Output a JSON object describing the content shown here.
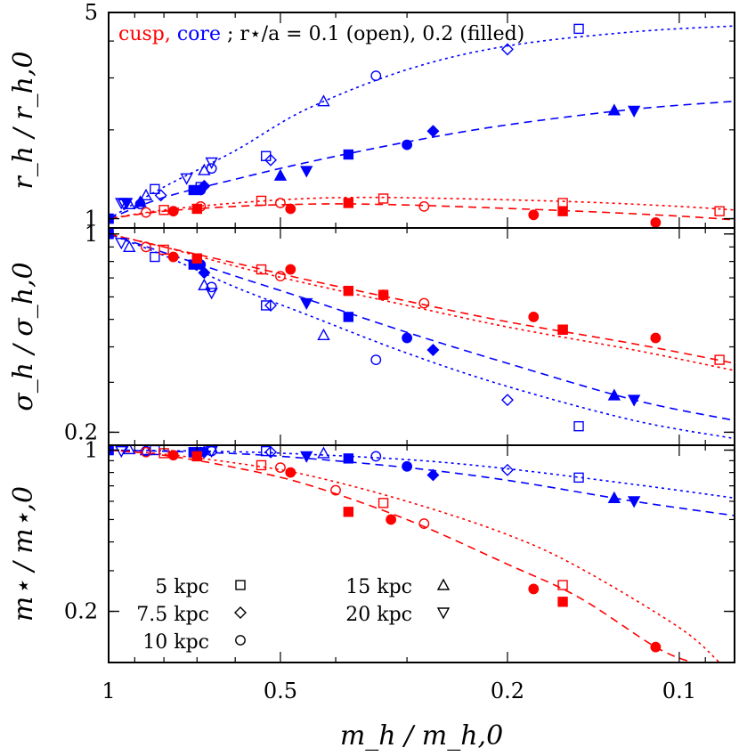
{
  "chart_data": [
    {
      "type": "scatter",
      "panel": "r",
      "ylabel": "r_h / r_h,0",
      "yscale": "log",
      "ylim": [
        0.93,
        5
      ],
      "yticks": [
        {
          "v": 1,
          "label": "1"
        },
        {
          "v": 5,
          "label": "5"
        }
      ],
      "legend_text": {
        "cusp": "cusp,",
        "core": "core",
        "sep": ";",
        "ratio": "r⋆/a = 0.1 (open), 0.2 (filled)"
      },
      "curves": [
        {
          "profile": "core",
          "ratio": "0.1",
          "x": [
            1,
            0.8,
            0.6,
            0.45,
            0.3,
            0.2,
            0.12,
            0.08
          ],
          "y": [
            1,
            1.28,
            1.7,
            2.35,
            3.2,
            3.85,
            4.3,
            4.5
          ]
        },
        {
          "profile": "core",
          "ratio": "0.2",
          "x": [
            1,
            0.8,
            0.6,
            0.45,
            0.3,
            0.2,
            0.12,
            0.08
          ],
          "y": [
            1,
            1.18,
            1.36,
            1.55,
            1.82,
            2.08,
            2.35,
            2.5
          ]
        },
        {
          "profile": "cusp",
          "ratio": "0.1",
          "x": [
            1,
            0.8,
            0.6,
            0.45,
            0.35,
            0.25,
            0.15,
            0.1,
            0.08
          ],
          "y": [
            1,
            1.07,
            1.13,
            1.17,
            1.18,
            1.17,
            1.14,
            1.1,
            1.07
          ]
        },
        {
          "profile": "cusp",
          "ratio": "0.2",
          "x": [
            1,
            0.8,
            0.6,
            0.45,
            0.35,
            0.25,
            0.15,
            0.1,
            0.08
          ],
          "y": [
            1,
            1.06,
            1.1,
            1.12,
            1.12,
            1.1,
            1.06,
            1.02,
            0.99
          ]
        }
      ],
      "points": [
        {
          "profile": "core",
          "ratio": "0.1",
          "radius": "5 kpc",
          "x": [
            1,
            0.83,
            0.69,
            0.53,
            0.15
          ],
          "y": [
            1,
            1.26,
            1.28,
            1.63,
            4.4
          ]
        },
        {
          "profile": "core",
          "ratio": "0.1",
          "radius": "7.5 kpc",
          "x": [
            0.81,
            0.52,
            0.2
          ],
          "y": [
            1.2,
            1.58,
            3.75
          ]
        },
        {
          "profile": "core",
          "ratio": "0.1",
          "radius": "10 kpc",
          "x": [
            0.88,
            0.66,
            0.34
          ],
          "y": [
            1.12,
            1.48,
            3.05
          ]
        },
        {
          "profile": "core",
          "ratio": "0.1",
          "radius": "15 kpc",
          "x": [
            0.92,
            0.86,
            0.68,
            0.42
          ],
          "y": [
            1.12,
            1.2,
            1.46,
            2.5
          ]
        },
        {
          "profile": "core",
          "ratio": "0.1",
          "radius": "20 kpc",
          "x": [
            0.95,
            0.94,
            0.73,
            0.66
          ],
          "y": [
            1.13,
            1.12,
            1.37,
            1.55
          ]
        },
        {
          "profile": "core",
          "ratio": "0.2",
          "radius": "5 kpc",
          "x": [
            1,
            0.71,
            0.38
          ],
          "y": [
            1,
            1.25,
            1.65
          ]
        },
        {
          "profile": "core",
          "ratio": "0.2",
          "radius": "7.5 kpc",
          "x": [
            0.68,
            0.27
          ],
          "y": [
            1.29,
            1.98
          ]
        },
        {
          "profile": "core",
          "ratio": "0.2",
          "radius": "10 kpc",
          "x": [
            0.69,
            0.3
          ],
          "y": [
            1.25,
            1.78
          ]
        },
        {
          "profile": "core",
          "ratio": "0.2",
          "radius": "15 kpc",
          "x": [
            0.88,
            0.5,
            0.13
          ],
          "y": [
            1.14,
            1.4,
            2.33
          ]
        },
        {
          "profile": "core",
          "ratio": "0.2",
          "radius": "20 kpc",
          "x": [
            0.93,
            0.45,
            0.12
          ],
          "y": [
            1.13,
            1.45,
            2.32
          ]
        },
        {
          "profile": "cusp",
          "ratio": "0.1",
          "radius": "5 kpc",
          "x": [
            0.8,
            0.54,
            0.33,
            0.16,
            0.085
          ],
          "y": [
            1.07,
            1.15,
            1.17,
            1.13,
            1.06
          ]
        },
        {
          "profile": "cusp",
          "ratio": "0.1",
          "radius": "10 kpc",
          "x": [
            0.86,
            0.69,
            0.5,
            0.28
          ],
          "y": [
            1.05,
            1.1,
            1.13,
            1.1
          ]
        },
        {
          "profile": "cusp",
          "ratio": "0.2",
          "radius": "5 kpc",
          "x": [
            0.7,
            0.38,
            0.16
          ],
          "y": [
            1.08,
            1.13,
            1.06
          ]
        },
        {
          "profile": "cusp",
          "ratio": "0.2",
          "radius": "10 kpc",
          "x": [
            0.77,
            0.48,
            0.18,
            0.11
          ],
          "y": [
            1.06,
            1.08,
            1.03,
            0.97
          ]
        }
      ]
    },
    {
      "type": "scatter",
      "panel": "sigma",
      "ylabel": "σ_h / σ_h,0",
      "yscale": "log",
      "ylim": [
        0.18,
        1.05
      ],
      "yticks": [
        {
          "v": 1,
          "label": "1"
        },
        {
          "v": 0.2,
          "label": "0.2"
        }
      ],
      "curves": [
        {
          "profile": "core",
          "ratio": "0.1",
          "x": [
            1,
            0.8,
            0.6,
            0.45,
            0.3,
            0.2,
            0.12,
            0.08
          ],
          "y": [
            1,
            0.84,
            0.65,
            0.52,
            0.38,
            0.29,
            0.22,
            0.19
          ]
        },
        {
          "profile": "core",
          "ratio": "0.2",
          "x": [
            1,
            0.8,
            0.6,
            0.45,
            0.3,
            0.2,
            0.12,
            0.08
          ],
          "y": [
            1,
            0.86,
            0.71,
            0.59,
            0.45,
            0.35,
            0.26,
            0.22
          ]
        },
        {
          "profile": "cusp",
          "ratio": "0.1",
          "x": [
            1,
            0.8,
            0.6,
            0.45,
            0.3,
            0.2,
            0.12,
            0.08
          ],
          "y": [
            1,
            0.9,
            0.77,
            0.67,
            0.56,
            0.47,
            0.39,
            0.33
          ]
        },
        {
          "profile": "cusp",
          "ratio": "0.2",
          "x": [
            1,
            0.8,
            0.6,
            0.45,
            0.3,
            0.2,
            0.12,
            0.08
          ],
          "y": [
            1,
            0.9,
            0.79,
            0.69,
            0.58,
            0.49,
            0.41,
            0.35
          ]
        }
      ],
      "points": [
        {
          "profile": "core",
          "ratio": "0.1",
          "radius": "5 kpc",
          "x": [
            1,
            0.83,
            0.53,
            0.15
          ],
          "y": [
            1,
            0.83,
            0.56,
            0.21
          ]
        },
        {
          "profile": "core",
          "ratio": "0.1",
          "radius": "7.5 kpc",
          "x": [
            0.52,
            0.2
          ],
          "y": [
            0.56,
            0.26
          ]
        },
        {
          "profile": "core",
          "ratio": "0.1",
          "radius": "10 kpc",
          "x": [
            0.66,
            0.34
          ],
          "y": [
            0.65,
            0.36
          ]
        },
        {
          "profile": "core",
          "ratio": "0.1",
          "radius": "15 kpc",
          "x": [
            0.92,
            0.68,
            0.42
          ],
          "y": [
            0.9,
            0.66,
            0.44
          ]
        },
        {
          "profile": "core",
          "ratio": "0.1",
          "radius": "20 kpc",
          "x": [
            0.95,
            0.66
          ],
          "y": [
            0.93,
            0.62
          ]
        },
        {
          "profile": "core",
          "ratio": "0.2",
          "radius": "5 kpc",
          "x": [
            1,
            0.71,
            0.38
          ],
          "y": [
            1,
            0.78,
            0.51
          ]
        },
        {
          "profile": "core",
          "ratio": "0.2",
          "radius": "7.5 kpc",
          "x": [
            0.68,
            0.27
          ],
          "y": [
            0.73,
            0.39
          ]
        },
        {
          "profile": "core",
          "ratio": "0.2",
          "radius": "10 kpc",
          "x": [
            0.69,
            0.3
          ],
          "y": [
            0.78,
            0.43
          ]
        },
        {
          "profile": "core",
          "ratio": "0.2",
          "radius": "15 kpc",
          "x": [
            0.13
          ],
          "y": [
            0.27
          ]
        },
        {
          "profile": "core",
          "ratio": "0.2",
          "radius": "20 kpc",
          "x": [
            0.45,
            0.12
          ],
          "y": [
            0.57,
            0.26
          ]
        },
        {
          "profile": "cusp",
          "ratio": "0.1",
          "radius": "5 kpc",
          "x": [
            0.8,
            0.54,
            0.33,
            0.16,
            0.085
          ],
          "y": [
            0.88,
            0.75,
            0.61,
            0.46,
            0.36
          ]
        },
        {
          "profile": "cusp",
          "ratio": "0.1",
          "radius": "10 kpc",
          "x": [
            0.86,
            0.5,
            0.28
          ],
          "y": [
            0.9,
            0.71,
            0.57
          ]
        },
        {
          "profile": "cusp",
          "ratio": "0.2",
          "radius": "5 kpc",
          "x": [
            0.7,
            0.38,
            0.16
          ],
          "y": [
            0.82,
            0.63,
            0.46
          ]
        },
        {
          "profile": "cusp",
          "ratio": "0.2",
          "radius": "10 kpc",
          "x": [
            0.77,
            0.48,
            0.33,
            0.18,
            0.11
          ],
          "y": [
            0.83,
            0.75,
            0.61,
            0.51,
            0.43
          ]
        }
      ]
    },
    {
      "type": "scatter",
      "panel": "mstar",
      "ylabel": "m⋆ / m⋆,0",
      "xlabel": "m_h / m_h,0",
      "yscale": "log",
      "ylim": [
        0.12,
        1.05
      ],
      "yticks": [
        {
          "v": 1,
          "label": "1"
        },
        {
          "v": 0.2,
          "label": "0.2"
        }
      ],
      "xscale": "log",
      "xreversed": true,
      "xlim": [
        1.0,
        0.08
      ],
      "xticks": [
        {
          "v": 1,
          "label": "1"
        },
        {
          "v": 0.5,
          "label": "0.5"
        },
        {
          "v": 0.2,
          "label": "0.2"
        },
        {
          "v": 0.1,
          "label": "0.1"
        }
      ],
      "legend": [
        {
          "label": "5 kpc",
          "symbol": "square"
        },
        {
          "label": "7.5 kpc",
          "symbol": "diamond"
        },
        {
          "label": "10 kpc",
          "symbol": "circle"
        },
        {
          "label": "15 kpc",
          "symbol": "triangle-up"
        },
        {
          "label": "20 kpc",
          "symbol": "triangle-down"
        }
      ],
      "curves": [
        {
          "profile": "core",
          "ratio": "0.1",
          "x": [
            1,
            0.7,
            0.5,
            0.3,
            0.2,
            0.12,
            0.08
          ],
          "y": [
            1,
            0.99,
            0.97,
            0.91,
            0.83,
            0.71,
            0.62
          ]
        },
        {
          "profile": "core",
          "ratio": "0.2",
          "x": [
            1,
            0.7,
            0.5,
            0.3,
            0.2,
            0.12,
            0.08
          ],
          "y": [
            1,
            0.98,
            0.94,
            0.84,
            0.74,
            0.6,
            0.52
          ]
        },
        {
          "profile": "cusp",
          "ratio": "0.1",
          "x": [
            1,
            0.8,
            0.6,
            0.45,
            0.3,
            0.2,
            0.15,
            0.1,
            0.085
          ],
          "y": [
            1,
            0.96,
            0.88,
            0.78,
            0.6,
            0.43,
            0.31,
            0.17,
            0.12
          ]
        },
        {
          "profile": "cusp",
          "ratio": "0.2",
          "x": [
            1,
            0.8,
            0.6,
            0.45,
            0.3,
            0.2,
            0.15,
            0.11,
            0.095
          ],
          "y": [
            1,
            0.95,
            0.84,
            0.71,
            0.5,
            0.32,
            0.23,
            0.14,
            0.12
          ]
        }
      ],
      "points": [
        {
          "profile": "core",
          "ratio": "0.1",
          "radius": "5 kpc",
          "x": [
            1,
            0.83,
            0.53,
            0.15
          ],
          "y": [
            1,
            1.0,
            0.99,
            0.76
          ]
        },
        {
          "profile": "core",
          "ratio": "0.1",
          "radius": "7.5 kpc",
          "x": [
            0.52,
            0.2
          ],
          "y": [
            0.98,
            0.82
          ]
        },
        {
          "profile": "core",
          "ratio": "0.1",
          "radius": "10 kpc",
          "x": [
            0.86,
            0.66,
            0.34
          ],
          "y": [
            0.99,
            0.99,
            0.94
          ]
        },
        {
          "profile": "core",
          "ratio": "0.1",
          "radius": "15 kpc",
          "x": [
            0.92,
            0.86,
            0.42
          ],
          "y": [
            1.01,
            1.0,
            0.97
          ]
        },
        {
          "profile": "core",
          "ratio": "0.1",
          "radius": "20 kpc",
          "x": [
            0.95,
            0.66
          ],
          "y": [
            0.99,
            0.99
          ]
        },
        {
          "profile": "core",
          "ratio": "0.2",
          "radius": "5 kpc",
          "x": [
            1,
            0.71,
            0.38
          ],
          "y": [
            1,
            0.98,
            0.92
          ]
        },
        {
          "profile": "core",
          "ratio": "0.2",
          "radius": "7.5 kpc",
          "x": [
            0.68,
            0.27
          ],
          "y": [
            0.98,
            0.78
          ]
        },
        {
          "profile": "core",
          "ratio": "0.2",
          "radius": "10 kpc",
          "x": [
            0.69,
            0.3
          ],
          "y": [
            0.98,
            0.85
          ]
        },
        {
          "profile": "core",
          "ratio": "0.2",
          "radius": "15 kpc",
          "x": [
            0.13
          ],
          "y": [
            0.62
          ]
        },
        {
          "profile": "core",
          "ratio": "0.2",
          "radius": "20 kpc",
          "x": [
            0.45,
            0.12
          ],
          "y": [
            0.94,
            0.6
          ]
        },
        {
          "profile": "cusp",
          "ratio": "0.1",
          "radius": "5 kpc",
          "x": [
            0.8,
            0.54,
            0.33,
            0.16,
            0.085
          ],
          "y": [
            0.97,
            0.86,
            0.59,
            0.26,
            0.11
          ]
        },
        {
          "profile": "cusp",
          "ratio": "0.1",
          "radius": "10 kpc",
          "x": [
            0.86,
            0.5,
            0.4,
            0.28
          ],
          "y": [
            0.98,
            0.84,
            0.67,
            0.48
          ]
        },
        {
          "profile": "cusp",
          "ratio": "0.2",
          "radius": "5 kpc",
          "x": [
            0.7,
            0.38,
            0.16
          ],
          "y": [
            0.94,
            0.54,
            0.22
          ]
        },
        {
          "profile": "cusp",
          "ratio": "0.2",
          "radius": "10 kpc",
          "x": [
            0.77,
            0.48,
            0.32,
            0.18,
            0.11
          ],
          "y": [
            0.95,
            0.8,
            0.5,
            0.25,
            0.14
          ]
        }
      ]
    }
  ],
  "colors": {
    "cusp": "#ff0000",
    "core": "#0000ff",
    "axis": "#000000"
  }
}
